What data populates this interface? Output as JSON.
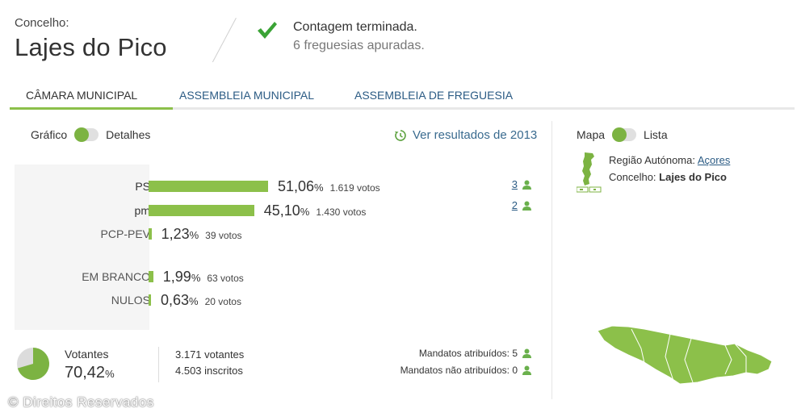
{
  "header": {
    "label": "Concelho:",
    "county": "Lajes do Pico",
    "status_title": "Contagem terminada.",
    "status_sub": "6 freguesias apuradas."
  },
  "tabs": [
    {
      "label": "CÂMARA MUNICIPAL",
      "active": true
    },
    {
      "label": "ASSEMBLEIA MUNICIPAL",
      "active": false
    },
    {
      "label": "ASSEMBLEIA DE FREGUESIA",
      "active": false
    }
  ],
  "view_toggle": {
    "left": "Gráfico",
    "right": "Detalhes"
  },
  "previous_link": "Ver resultados de 2013",
  "results": [
    {
      "party": "PS",
      "pct": "51,06",
      "pct_value": 51.06,
      "votes": "1.619 votos",
      "mandates": "3"
    },
    {
      "party": "pm",
      "pct": "45,10",
      "pct_value": 45.1,
      "votes": "1.430 votos",
      "mandates": "2"
    },
    {
      "party": "PCP-PEV",
      "pct": "1,23",
      "pct_value": 1.23,
      "votes": "39 votos",
      "mandates": ""
    },
    {
      "party": "EM BRANCO",
      "pct": "1,99",
      "pct_value": 1.99,
      "votes": "63 votos",
      "mandates": ""
    },
    {
      "party": "NULOS",
      "pct": "0,63",
      "pct_value": 0.63,
      "votes": "20 votos",
      "mandates": ""
    }
  ],
  "percent_sign": "%",
  "turnout": {
    "label": "Votantes",
    "pct": "70,42",
    "pct_value": 70.42,
    "voters": "3.171 votantes",
    "registered": "4.503 inscritos",
    "mandates_assigned": "Mandatos atribuídos: 5",
    "mandates_unassigned": "Mandatos não atribuídos: 0"
  },
  "map_toggle": {
    "left": "Mapa",
    "right": "Lista"
  },
  "region": {
    "region_label": "Região Autónoma:",
    "region_value": "Açores",
    "county_label": "Concelho:",
    "county_value": "Lajes do Pico"
  },
  "copyright": "© Direitos Reservados",
  "colors": {
    "accent": "#8cc04a",
    "toggle": "#7cb342",
    "link": "#2b5b84"
  }
}
